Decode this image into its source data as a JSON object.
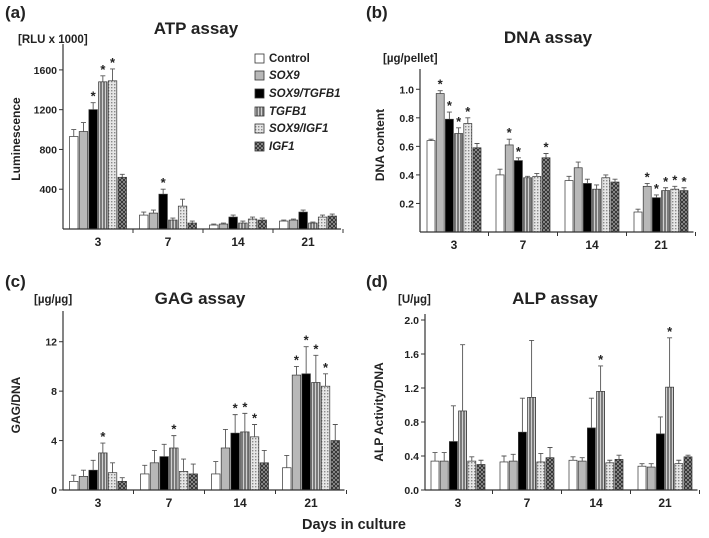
{
  "series": [
    {
      "name": "Control",
      "fill": "#ffffff",
      "italic": false
    },
    {
      "name": "SOX9",
      "fill": "#b8b8b8",
      "italic": true
    },
    {
      "name": "SOX9/TGFB1",
      "fill": "#000000",
      "italic": true
    },
    {
      "name": "TGFB1",
      "fill": "#6e6e6e",
      "italic": true
    },
    {
      "name": "SOX9/IGF1",
      "fill": "#dcdcdc",
      "italic": true
    },
    {
      "name": "IGF1",
      "fill": "#7c7c7c",
      "italic": true
    }
  ],
  "xtitle": "Days in culture",
  "chart_data": [
    {
      "type": "bar",
      "letter": "(a)",
      "title": "ATP assay",
      "unit": "[RLU x 1000]",
      "ylabel": "Luminescence",
      "categories": [
        "3",
        "7",
        "14",
        "21"
      ],
      "ylim": [
        0,
        1800
      ],
      "yticks": [
        "400",
        "800",
        "1200",
        "1600"
      ],
      "values": [
        [
          930,
          980,
          1200,
          1480,
          1490,
          520
        ],
        [
          140,
          160,
          350,
          90,
          230,
          60
        ],
        [
          40,
          50,
          120,
          60,
          100,
          90
        ],
        [
          80,
          90,
          170,
          60,
          120,
          130
        ]
      ],
      "errors": [
        [
          70,
          90,
          70,
          60,
          120,
          30
        ],
        [
          30,
          30,
          50,
          20,
          70,
          20
        ],
        [
          10,
          10,
          20,
          20,
          20,
          20
        ],
        [
          10,
          10,
          20,
          10,
          20,
          20
        ]
      ],
      "stars": [
        [
          0,
          0,
          1,
          1,
          1,
          0
        ],
        [
          0,
          0,
          1,
          0,
          0,
          0
        ],
        [
          0,
          0,
          0,
          0,
          0,
          0
        ],
        [
          0,
          0,
          0,
          0,
          0,
          0
        ]
      ],
      "legend": "top-right"
    },
    {
      "type": "bar",
      "letter": "(b)",
      "title": "DNA assay",
      "unit": "[µg/pellet]",
      "ylabel": "DNA content",
      "categories": [
        "3",
        "7",
        "14",
        "21"
      ],
      "ylim": [
        0,
        1.1
      ],
      "yticks": [
        "0.2",
        "0.4",
        "0.6",
        "0.8",
        "1.0"
      ],
      "values": [
        [
          0.64,
          0.97,
          0.79,
          0.69,
          0.76,
          0.59
        ],
        [
          0.4,
          0.61,
          0.5,
          0.38,
          0.39,
          0.52
        ],
        [
          0.36,
          0.45,
          0.34,
          0.3,
          0.38,
          0.35
        ],
        [
          0.14,
          0.32,
          0.24,
          0.29,
          0.3,
          0.29
        ]
      ],
      "errors": [
        [
          0.01,
          0.02,
          0.05,
          0.04,
          0.04,
          0.03
        ],
        [
          0.04,
          0.04,
          0.02,
          0.01,
          0.02,
          0.03
        ],
        [
          0.03,
          0.04,
          0.03,
          0.03,
          0.02,
          0.02
        ],
        [
          0.02,
          0.02,
          0.02,
          0.02,
          0.02,
          0.02
        ]
      ],
      "stars": [
        [
          0,
          1,
          1,
          1,
          1,
          0
        ],
        [
          0,
          1,
          1,
          0,
          0,
          1
        ],
        [
          0,
          0,
          0,
          0,
          0,
          0
        ],
        [
          0,
          1,
          1,
          1,
          1,
          1
        ]
      ]
    },
    {
      "type": "bar",
      "letter": "(c)",
      "title": "GAG assay",
      "unit": "[µg/µg]",
      "ylabel": "GAG/DNA",
      "categories": [
        "3",
        "7",
        "14",
        "21"
      ],
      "ylim": [
        0,
        14
      ],
      "yticks": [
        "0",
        "4",
        "8",
        "12"
      ],
      "values": [
        [
          0.7,
          1.1,
          1.6,
          3.0,
          1.4,
          0.7
        ],
        [
          1.3,
          2.2,
          2.7,
          3.4,
          1.5,
          1.3
        ],
        [
          1.3,
          3.4,
          4.6,
          4.7,
          4.3,
          2.2
        ],
        [
          1.8,
          9.3,
          9.4,
          8.7,
          8.4,
          4.0
        ]
      ],
      "errors": [
        [
          0.5,
          0.5,
          0.8,
          0.8,
          0.8,
          0.3
        ],
        [
          0.7,
          1.0,
          1.0,
          1.0,
          1.0,
          0.8
        ],
        [
          1.0,
          1.5,
          1.5,
          1.5,
          1.0,
          1.0
        ],
        [
          1.0,
          0.7,
          2.2,
          2.2,
          1.0,
          1.3
        ]
      ],
      "stars": [
        [
          0,
          0,
          0,
          1,
          0,
          0
        ],
        [
          0,
          0,
          0,
          1,
          0,
          0
        ],
        [
          0,
          0,
          1,
          1,
          1,
          0
        ],
        [
          0,
          1,
          1,
          1,
          1,
          0
        ]
      ]
    },
    {
      "type": "bar",
      "letter": "(d)",
      "title": "ALP assay",
      "unit": "[U/µg]",
      "ylabel": "ALP Activity/DNA",
      "categories": [
        "3",
        "7",
        "14",
        "21"
      ],
      "ylim": [
        0,
        2.0
      ],
      "yticks": [
        "0.0",
        "0.4",
        "0.8",
        "1.2",
        "1.6",
        "2.0"
      ],
      "values": [
        [
          0.34,
          0.34,
          0.57,
          0.93,
          0.34,
          0.3
        ],
        [
          0.33,
          0.34,
          0.68,
          1.09,
          0.33,
          0.38
        ],
        [
          0.35,
          0.34,
          0.73,
          1.16,
          0.32,
          0.36
        ],
        [
          0.28,
          0.27,
          0.66,
          1.21,
          0.31,
          0.39
        ]
      ],
      "errors": [
        [
          0.1,
          0.1,
          0.42,
          0.78,
          0.05,
          0.05
        ],
        [
          0.07,
          0.08,
          0.4,
          0.67,
          0.1,
          0.12
        ],
        [
          0.04,
          0.04,
          0.35,
          0.3,
          0.03,
          0.05
        ],
        [
          0.03,
          0.04,
          0.2,
          0.58,
          0.04,
          0.02
        ]
      ],
      "stars": [
        [
          0,
          0,
          0,
          0,
          0,
          0
        ],
        [
          0,
          0,
          0,
          0,
          0,
          0
        ],
        [
          0,
          0,
          0,
          1,
          0,
          0
        ],
        [
          0,
          0,
          0,
          1,
          0,
          0
        ]
      ]
    }
  ]
}
